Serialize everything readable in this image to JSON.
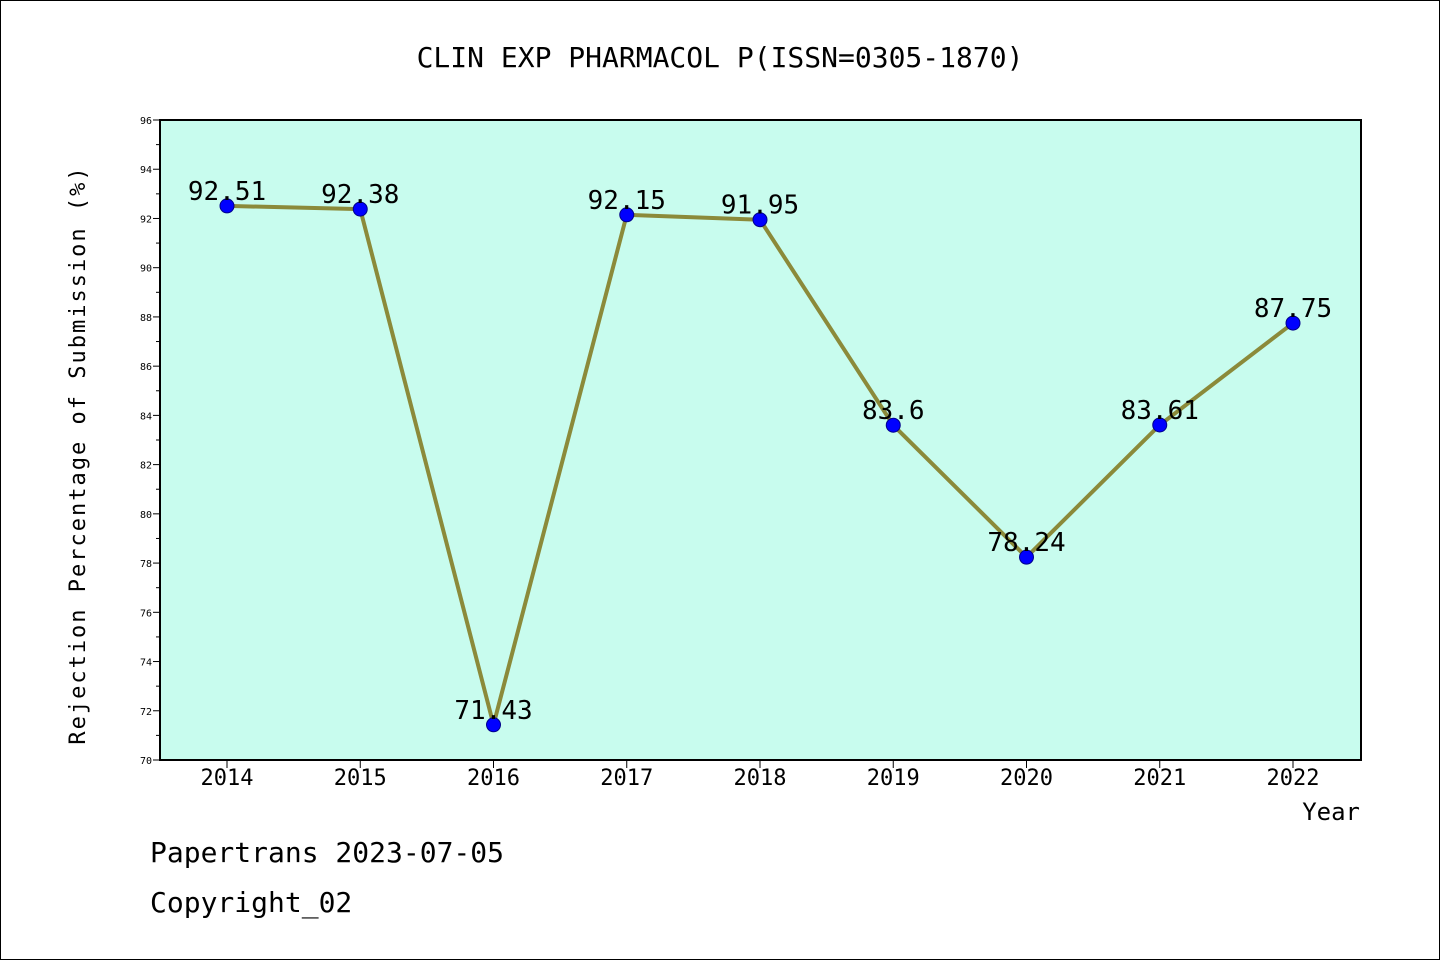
{
  "chart_data": {
    "type": "line",
    "title": "CLIN EXP PHARMACOL P(ISSN=0305-1870)",
    "xlabel": "Year",
    "ylabel": "Rejection Percentage of Submission (%)",
    "categories": [
      "2014",
      "2015",
      "2016",
      "2017",
      "2018",
      "2019",
      "2020",
      "2021",
      "2022"
    ],
    "values": [
      92.51,
      92.38,
      71.43,
      92.15,
      91.95,
      83.6,
      78.24,
      83.61,
      87.75
    ],
    "value_labels": [
      "92.51",
      "92.38",
      "71.43",
      "92.15",
      "91.95",
      "83.6",
      "78.24",
      "83.61",
      "87.75"
    ],
    "ylim": [
      70,
      96
    ],
    "yticks": [
      "70",
      "72",
      "74",
      "76",
      "78",
      "80",
      "82",
      "84",
      "86",
      "88",
      "90",
      "92",
      "94",
      "96"
    ],
    "grid": false,
    "colors": {
      "plot_background": "#c8fcee",
      "line": "#8b8a3a",
      "marker": "#0000ff"
    }
  },
  "footer": {
    "line1": "Papertrans 2023-07-05",
    "line2": "Copyright_02"
  }
}
